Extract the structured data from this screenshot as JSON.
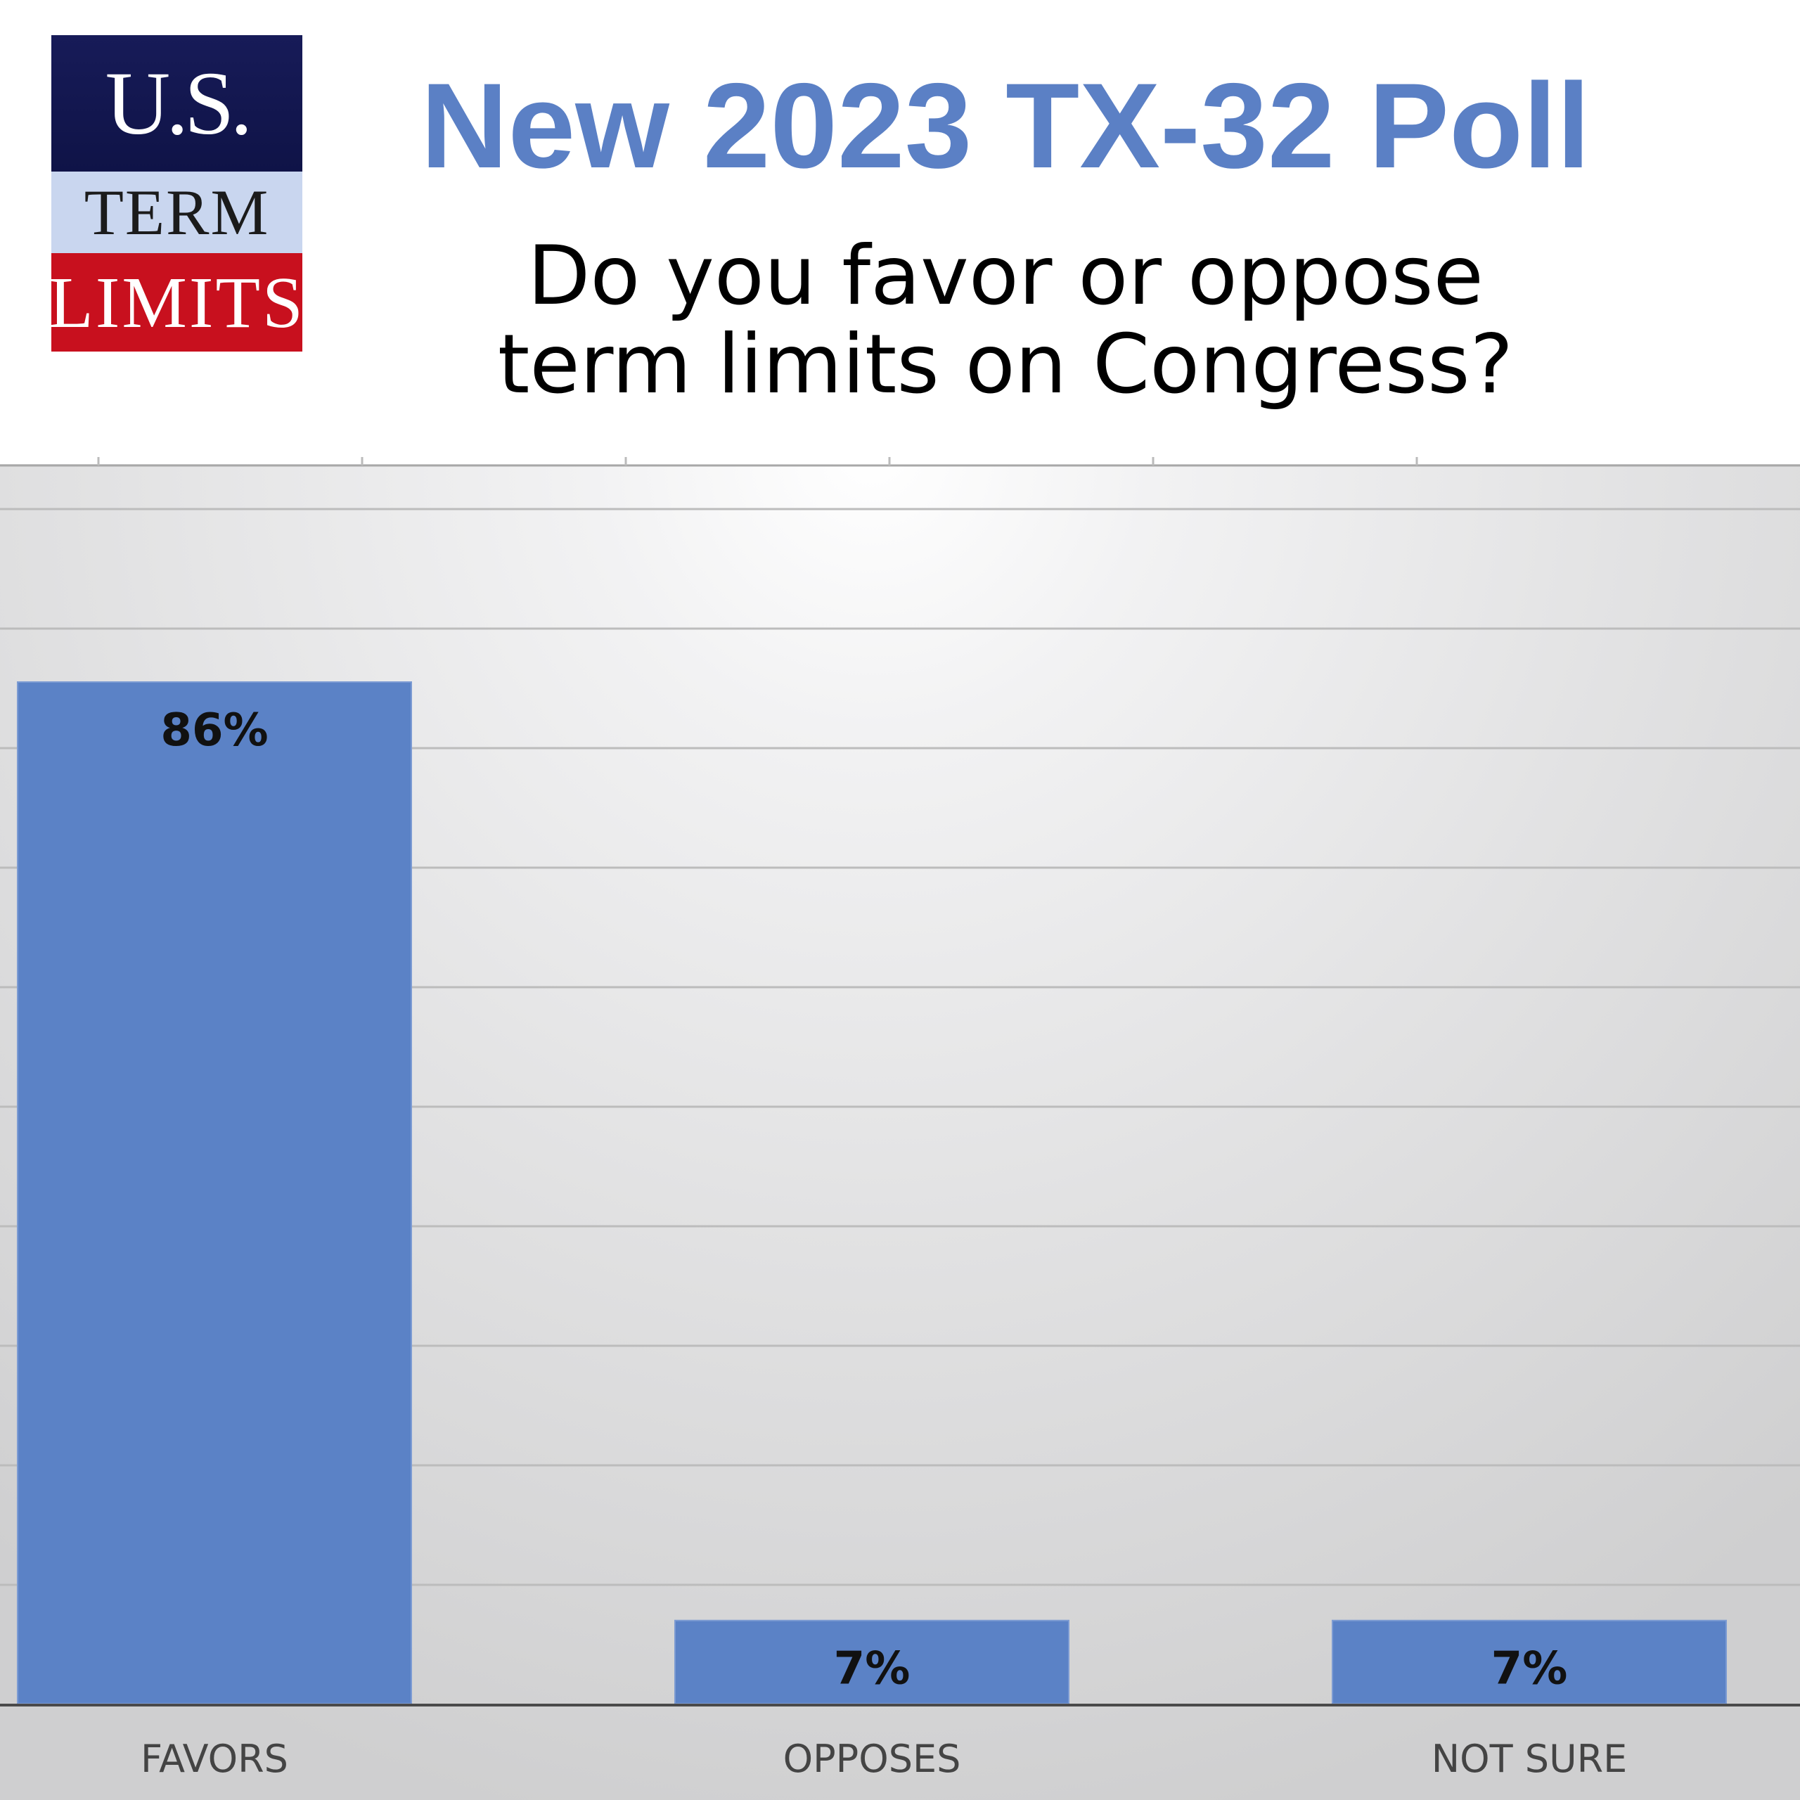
{
  "logo": {
    "line1": "U.S.",
    "line2": "TERM",
    "line3": "LIMITS",
    "colors": {
      "navy": "#141856",
      "light_blue": "#c9d6ef",
      "red": "#c8101e"
    }
  },
  "header": {
    "title": "New 2023 TX-32 Poll",
    "subtitle_lines": [
      "Do you favor or oppose",
      "term limits on Congress?"
    ]
  },
  "colors": {
    "bar": "#5b82c6",
    "title": "#5b80c5",
    "grid": "#bcbcbc"
  },
  "chart_data": {
    "type": "bar",
    "categories": [
      "FAVORS",
      "OPPOSES",
      "NOT SURE"
    ],
    "values": [
      86,
      7,
      7
    ],
    "data_labels": [
      "86%",
      "7%",
      "7%"
    ],
    "title": "New 2023 TX-32 Poll",
    "xlabel": "",
    "ylabel": "",
    "ylim": [
      0,
      86
    ],
    "grid": true,
    "legend": "none"
  }
}
